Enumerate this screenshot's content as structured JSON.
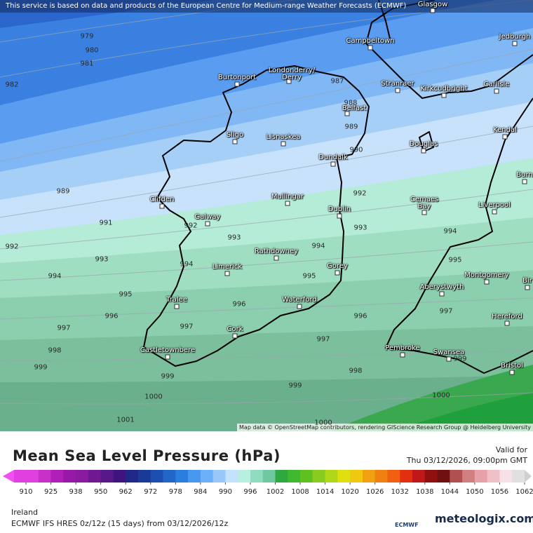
{
  "banner": "This service is based on data and products of the European Centre for Medium-range Weather Forecasts (ECMWF)",
  "attribution": "Map data © OpenStreetMap contributors, rendering GIScience Research Group @ Heidelberg University",
  "isobar_labels": [
    979,
    980,
    981,
    982,
    987,
    988,
    989,
    990,
    989,
    992,
    991,
    992,
    992,
    993,
    993,
    994,
    993,
    994,
    994,
    995,
    995,
    994,
    995,
    996,
    996,
    996,
    997,
    997,
    997,
    997,
    998,
    998,
    999,
    999,
    999,
    999,
    1000,
    1000,
    1001,
    1000
  ],
  "places": [
    "Glasgow",
    "Campbeltown",
    "Jedburgh",
    "Burtonport",
    "Londonderry/ Derry",
    "Stranraer",
    "Kirkcudbright",
    "Carlisle",
    "Belfast",
    "Sligo",
    "Lisnaskea",
    "Kendal",
    "Douglas",
    "Dundalk",
    "Burn",
    "Clifden",
    "Mullingar",
    "Dublin",
    "Cemaes Bay",
    "Liverpool",
    "Galway",
    "Rathdowney",
    "Limerick",
    "Gorey",
    "Montgomery",
    "Aberystwyth",
    "Bir",
    "Tralee",
    "Waterford",
    "Hereford",
    "Cork",
    "Castletownbere",
    "Pembroke",
    "Swansea",
    "Bristol"
  ],
  "title": "Mean Sea Level Pressure (hPa)",
  "valid_label": "Valid for",
  "valid_time": "Thu 03/12/2026, 09:00pm GMT",
  "colorbar": {
    "ticks": [
      910,
      925,
      938,
      950,
      962,
      972,
      978,
      984,
      990,
      996,
      1002,
      1008,
      1014,
      1020,
      1026,
      1032,
      1038,
      1044,
      1050,
      1056,
      1062
    ],
    "colors": [
      "#e040e0",
      "#c830c8",
      "#b020b8",
      "#9818a8",
      "#8a1aa0",
      "#701890",
      "#581888",
      "#401480",
      "#202888",
      "#1a3a98",
      "#1e4eb0",
      "#2266c8",
      "#2a7ee0",
      "#4898f0",
      "#6cb0f8",
      "#98c8fa",
      "#c4e2fc",
      "#b8f0e0",
      "#90dcc0",
      "#70c8a0",
      "#30a840",
      "#40b830",
      "#60c020",
      "#88cc20",
      "#b0d818",
      "#e0e010",
      "#f0c810",
      "#f0a010",
      "#f08010",
      "#f06010",
      "#e03010",
      "#c01818",
      "#901010",
      "#701010",
      "#b05050",
      "#d08080",
      "#e8a0a8",
      "#f0c0c8",
      "#f8e0e8",
      "#e0e0e0"
    ],
    "under_color": "#f050f0",
    "over_color": "#d0d0d0"
  },
  "region": "Ireland",
  "model_run": "ECMWF IFS HRES 0z/12z (15 days) from 03/12/2026/12z",
  "logo_ecmwf": "ECMWF",
  "brand": "meteologix.com"
}
